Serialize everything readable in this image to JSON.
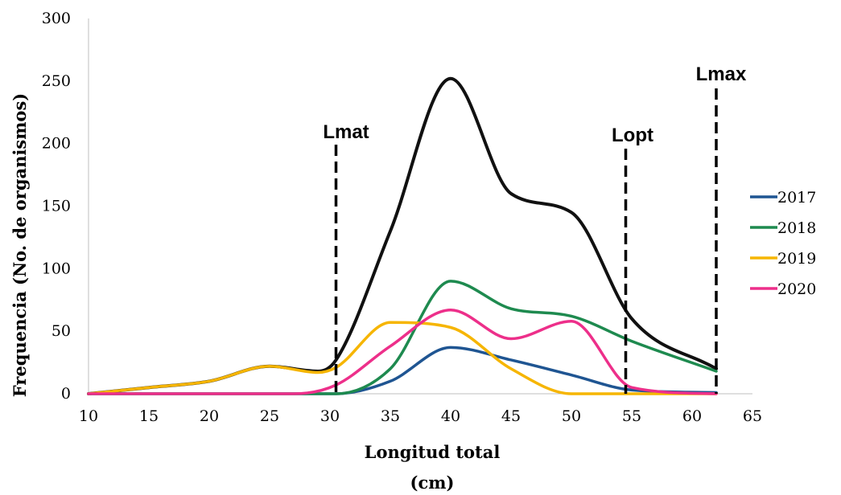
{
  "chart_data": {
    "type": "line",
    "xlabel_line1": "Longitud total",
    "xlabel_line2": "(cm)",
    "ylabel": "Frequencia (No. de organismos)",
    "xlim": [
      10,
      65
    ],
    "ylim": [
      0,
      300
    ],
    "xticks": [
      10,
      15,
      20,
      25,
      30,
      35,
      40,
      45,
      50,
      55,
      60,
      65
    ],
    "yticks": [
      0,
      50,
      100,
      150,
      200,
      250,
      300
    ],
    "grid": false,
    "legend_position": "right",
    "series": [
      {
        "name": "",
        "color": "#111111",
        "x": [
          10,
          15,
          20,
          25,
          29,
          30.5,
          35,
          40,
          45,
          50,
          55,
          62
        ],
        "y": [
          0,
          5,
          10,
          22,
          18,
          27,
          130,
          252,
          160,
          145,
          60,
          20
        ]
      },
      {
        "name": "2017",
        "color": "#1f5592",
        "x": [
          10,
          30.5,
          35,
          40,
          45,
          50,
          55,
          62
        ],
        "y": [
          0,
          0,
          10,
          37,
          27,
          15,
          3,
          1
        ]
      },
      {
        "name": "2018",
        "color": "#1e8a4f",
        "x": [
          10,
          30.5,
          35,
          40,
          45,
          50,
          55,
          62
        ],
        "y": [
          0,
          0,
          20,
          90,
          68,
          62,
          42,
          18
        ]
      },
      {
        "name": "2019",
        "color": "#f6b500",
        "x": [
          10,
          15,
          20,
          25,
          29,
          30.5,
          35,
          40,
          45,
          50,
          55,
          62
        ],
        "y": [
          0,
          5,
          10,
          22,
          17,
          21,
          57,
          53,
          20,
          0,
          0,
          0
        ]
      },
      {
        "name": "2020",
        "color": "#ed2f8a",
        "x": [
          10,
          27,
          30.5,
          35,
          40,
          45,
          50,
          55,
          62
        ],
        "y": [
          0,
          0,
          7,
          38,
          67,
          44,
          58,
          5,
          0
        ]
      }
    ],
    "reference_lines": [
      {
        "label": "Lmat",
        "x": 30.5
      },
      {
        "label": "Lopt",
        "x": 54.5
      },
      {
        "label": "Lmax",
        "x": 62
      }
    ]
  }
}
